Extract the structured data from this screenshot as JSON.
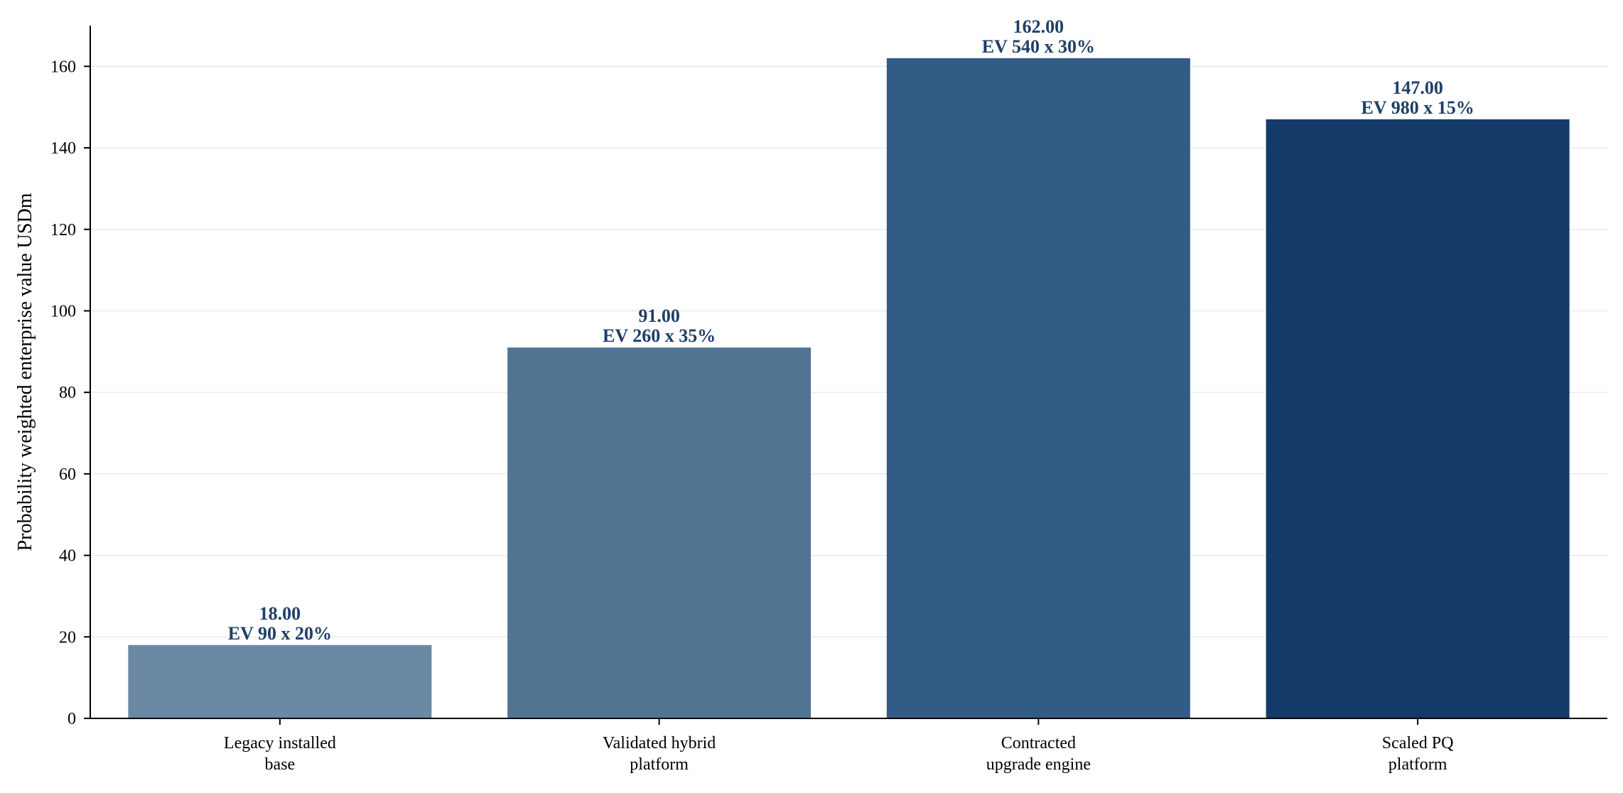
{
  "chart_data": {
    "type": "bar",
    "title": "",
    "xlabel": "",
    "ylabel": "Probability weighted enterprise value USDm",
    "ylim": [
      0,
      170
    ],
    "yticks": [
      0,
      20,
      40,
      60,
      80,
      100,
      120,
      140,
      160
    ],
    "grid": "horizontal",
    "categories": [
      [
        "Legacy installed",
        "base"
      ],
      [
        "Validated hybrid",
        "platform"
      ],
      [
        "Contracted",
        "upgrade engine"
      ],
      [
        "Scaled PQ",
        "platform"
      ]
    ],
    "values": [
      18,
      91,
      162,
      147
    ],
    "value_labels": [
      "18.00",
      "91.00",
      "162.00",
      "147.00"
    ],
    "annotations": [
      "EV 90 x 20%",
      "EV 260 x 35%",
      "EV 540 x 30%",
      "EV 980 x 15%"
    ],
    "bar_colors": [
      "#6b89a5",
      "#527493",
      "#325c85",
      "#133a68"
    ],
    "label_color": "#1f3f66"
  }
}
